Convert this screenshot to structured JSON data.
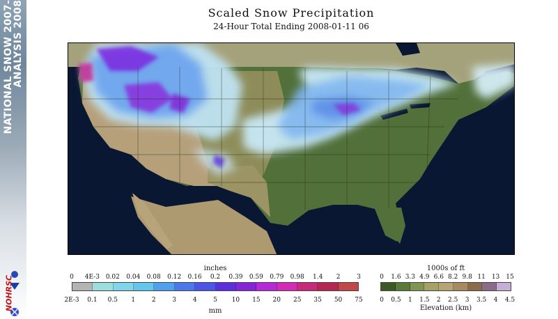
{
  "banner": {
    "line1": "NATIONAL SNOW 2007-",
    "line2": "ANALYSIS 2008",
    "logo_text": "NOHRSC"
  },
  "header": {
    "title": "Scaled Snow Precipitation",
    "subtitle": "24-Hour Total Ending 2008-01-11 06"
  },
  "map": {
    "region": "Contiguous United States",
    "colors": {
      "ocean": "#0a1733",
      "lowland": "#4e6a36",
      "plains": "#8a8a55",
      "high_terrain": "#b39a72",
      "snow_heavy": "#7a22d8",
      "snow_light": "#c8e6f4"
    }
  },
  "precip_legend": {
    "unit_top": "inches",
    "unit_bottom": "mm",
    "inches_labels": [
      "0",
      "4E-3",
      "0.02",
      "0.04",
      "0.08",
      "0.12",
      "0.16",
      "0.2",
      "0.39",
      "0.59",
      "0.79",
      "0.98",
      "1.4",
      "2",
      "3"
    ],
    "mm_labels": [
      "2E-3",
      "0.1",
      "0.5",
      "1",
      "2",
      "3",
      "4",
      "5",
      "10",
      "15",
      "20",
      "25",
      "35",
      "50",
      "75"
    ],
    "colors": [
      "#b4b4b4",
      "#9adede",
      "#7fd6ea",
      "#63c6ec",
      "#4fa0ee",
      "#4b78ea",
      "#4b55e6",
      "#5a30dc",
      "#8426d8",
      "#b42ad6",
      "#d42ab6",
      "#c62a78",
      "#b22850",
      "#c04848"
    ]
  },
  "elevation_legend": {
    "unit_top": "1000s of ft",
    "unit_bottom": "Elevation (km)",
    "ft_labels": [
      "0",
      "1.6",
      "3.3",
      "4.9",
      "6.6",
      "8.2",
      "9.8",
      "11",
      "13",
      "15"
    ],
    "km_labels": [
      "0",
      "0.5",
      "1",
      "1.5",
      "2",
      "2.5",
      "3",
      "3.5",
      "4",
      "4.5"
    ],
    "colors": [
      "#3c5a26",
      "#5a7a3a",
      "#7f9550",
      "#a6a266",
      "#b6a474",
      "#a78a62",
      "#8a6c4c",
      "#8c6a8a",
      "#c6aed6"
    ]
  }
}
